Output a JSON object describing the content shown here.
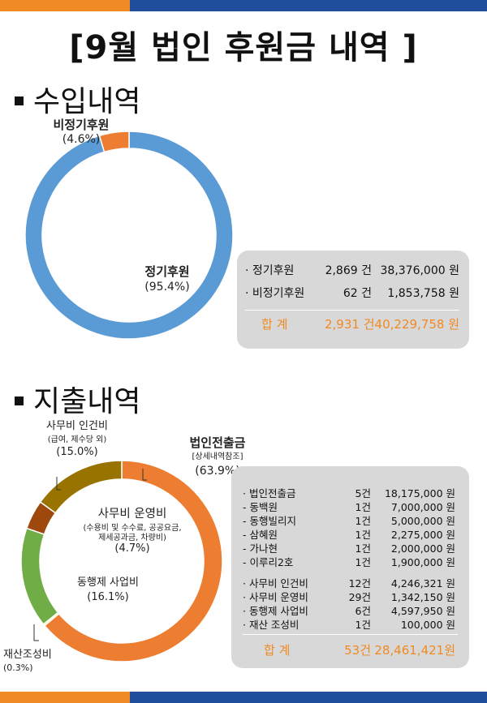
{
  "title": "[9월 법인 후원금 내역 ]",
  "income": {
    "heading": "수입내역",
    "chart_labels": [
      {
        "name": "비정기후원",
        "pct": "(4.6%)"
      },
      {
        "name": "정기후원",
        "pct": "(95.4%)"
      }
    ],
    "rows": [
      {
        "label": "· 정기후원",
        "count": "2,869 건",
        "amount": "38,376,000 원"
      },
      {
        "label": "· 비정기후원",
        "count": "62 건",
        "amount": "1,853,758 원"
      }
    ],
    "total": {
      "label": "합   계",
      "count": "2,931 건",
      "amount": "40,229,758 원"
    }
  },
  "expense": {
    "heading": "지출내역",
    "chart_labels": {
      "corporate": {
        "name": "법인전출금",
        "sub": "[상세내역참조]",
        "pct": "(63.9%)"
      },
      "personnel": {
        "name": "사무비 인건비",
        "sub": "(급여, 제수당 외)",
        "pct": "(15.0%)"
      },
      "operation": {
        "name": "사무비 운영비",
        "sub1": "(수용비 및 수수료, 공공요금,",
        "sub2": "제세공과금, 차량비)",
        "pct": "(4.7%)"
      },
      "project": {
        "name": "동행제 사업비",
        "pct": "(16.1%)"
      },
      "property": {
        "name": "재산조성비",
        "pct": "(0.3%)"
      }
    },
    "rows": [
      {
        "label": "· 법인전출금",
        "count": "5건",
        "amount": "18,175,000 원"
      },
      {
        "label": "-    동백원",
        "count": "1건",
        "amount": "7,000,000 원"
      },
      {
        "label": "-    동행빌리지",
        "count": "1건",
        "amount": "5,000,000 원"
      },
      {
        "label": "-    삼혜원",
        "count": "1건",
        "amount": "2,275,000 원"
      },
      {
        "label": "-    가나현",
        "count": "1건",
        "amount": "2,000,000 원"
      },
      {
        "label": "-    이루리2호",
        "count": "1건",
        "amount": "1,900,000 원"
      },
      {
        "label": "· 사무비 인건비",
        "count": "12건",
        "amount": "4,246,321 원"
      },
      {
        "label": "· 사무비 운영비",
        "count": "29건",
        "amount": "1,342,150 원"
      },
      {
        "label": "· 동행제 사업비",
        "count": "6건",
        "amount": "4,597,950 원"
      },
      {
        "label": "· 재산 조성비",
        "count": "1건",
        "amount": "100,000 원"
      }
    ],
    "total": {
      "label": "합   계",
      "count": "53건",
      "amount": "28,461,421원"
    }
  },
  "chart_data": [
    {
      "type": "pie",
      "donut": true,
      "categories": [
        "정기후원",
        "비정기후원"
      ],
      "values": [
        95.4,
        4.6
      ],
      "colors": [
        "#5b9bd5",
        "#ed7d31"
      ]
    },
    {
      "type": "pie",
      "donut": true,
      "categories": [
        "법인전출금",
        "재산조성비",
        "동행제 사업비",
        "사무비 운영비",
        "사무비 인건비"
      ],
      "values": [
        63.9,
        0.3,
        16.1,
        4.7,
        15.0
      ],
      "colors": [
        "#ed7d31",
        "#ffff99",
        "#70ad47",
        "#9e480e",
        "#997300"
      ]
    }
  ]
}
